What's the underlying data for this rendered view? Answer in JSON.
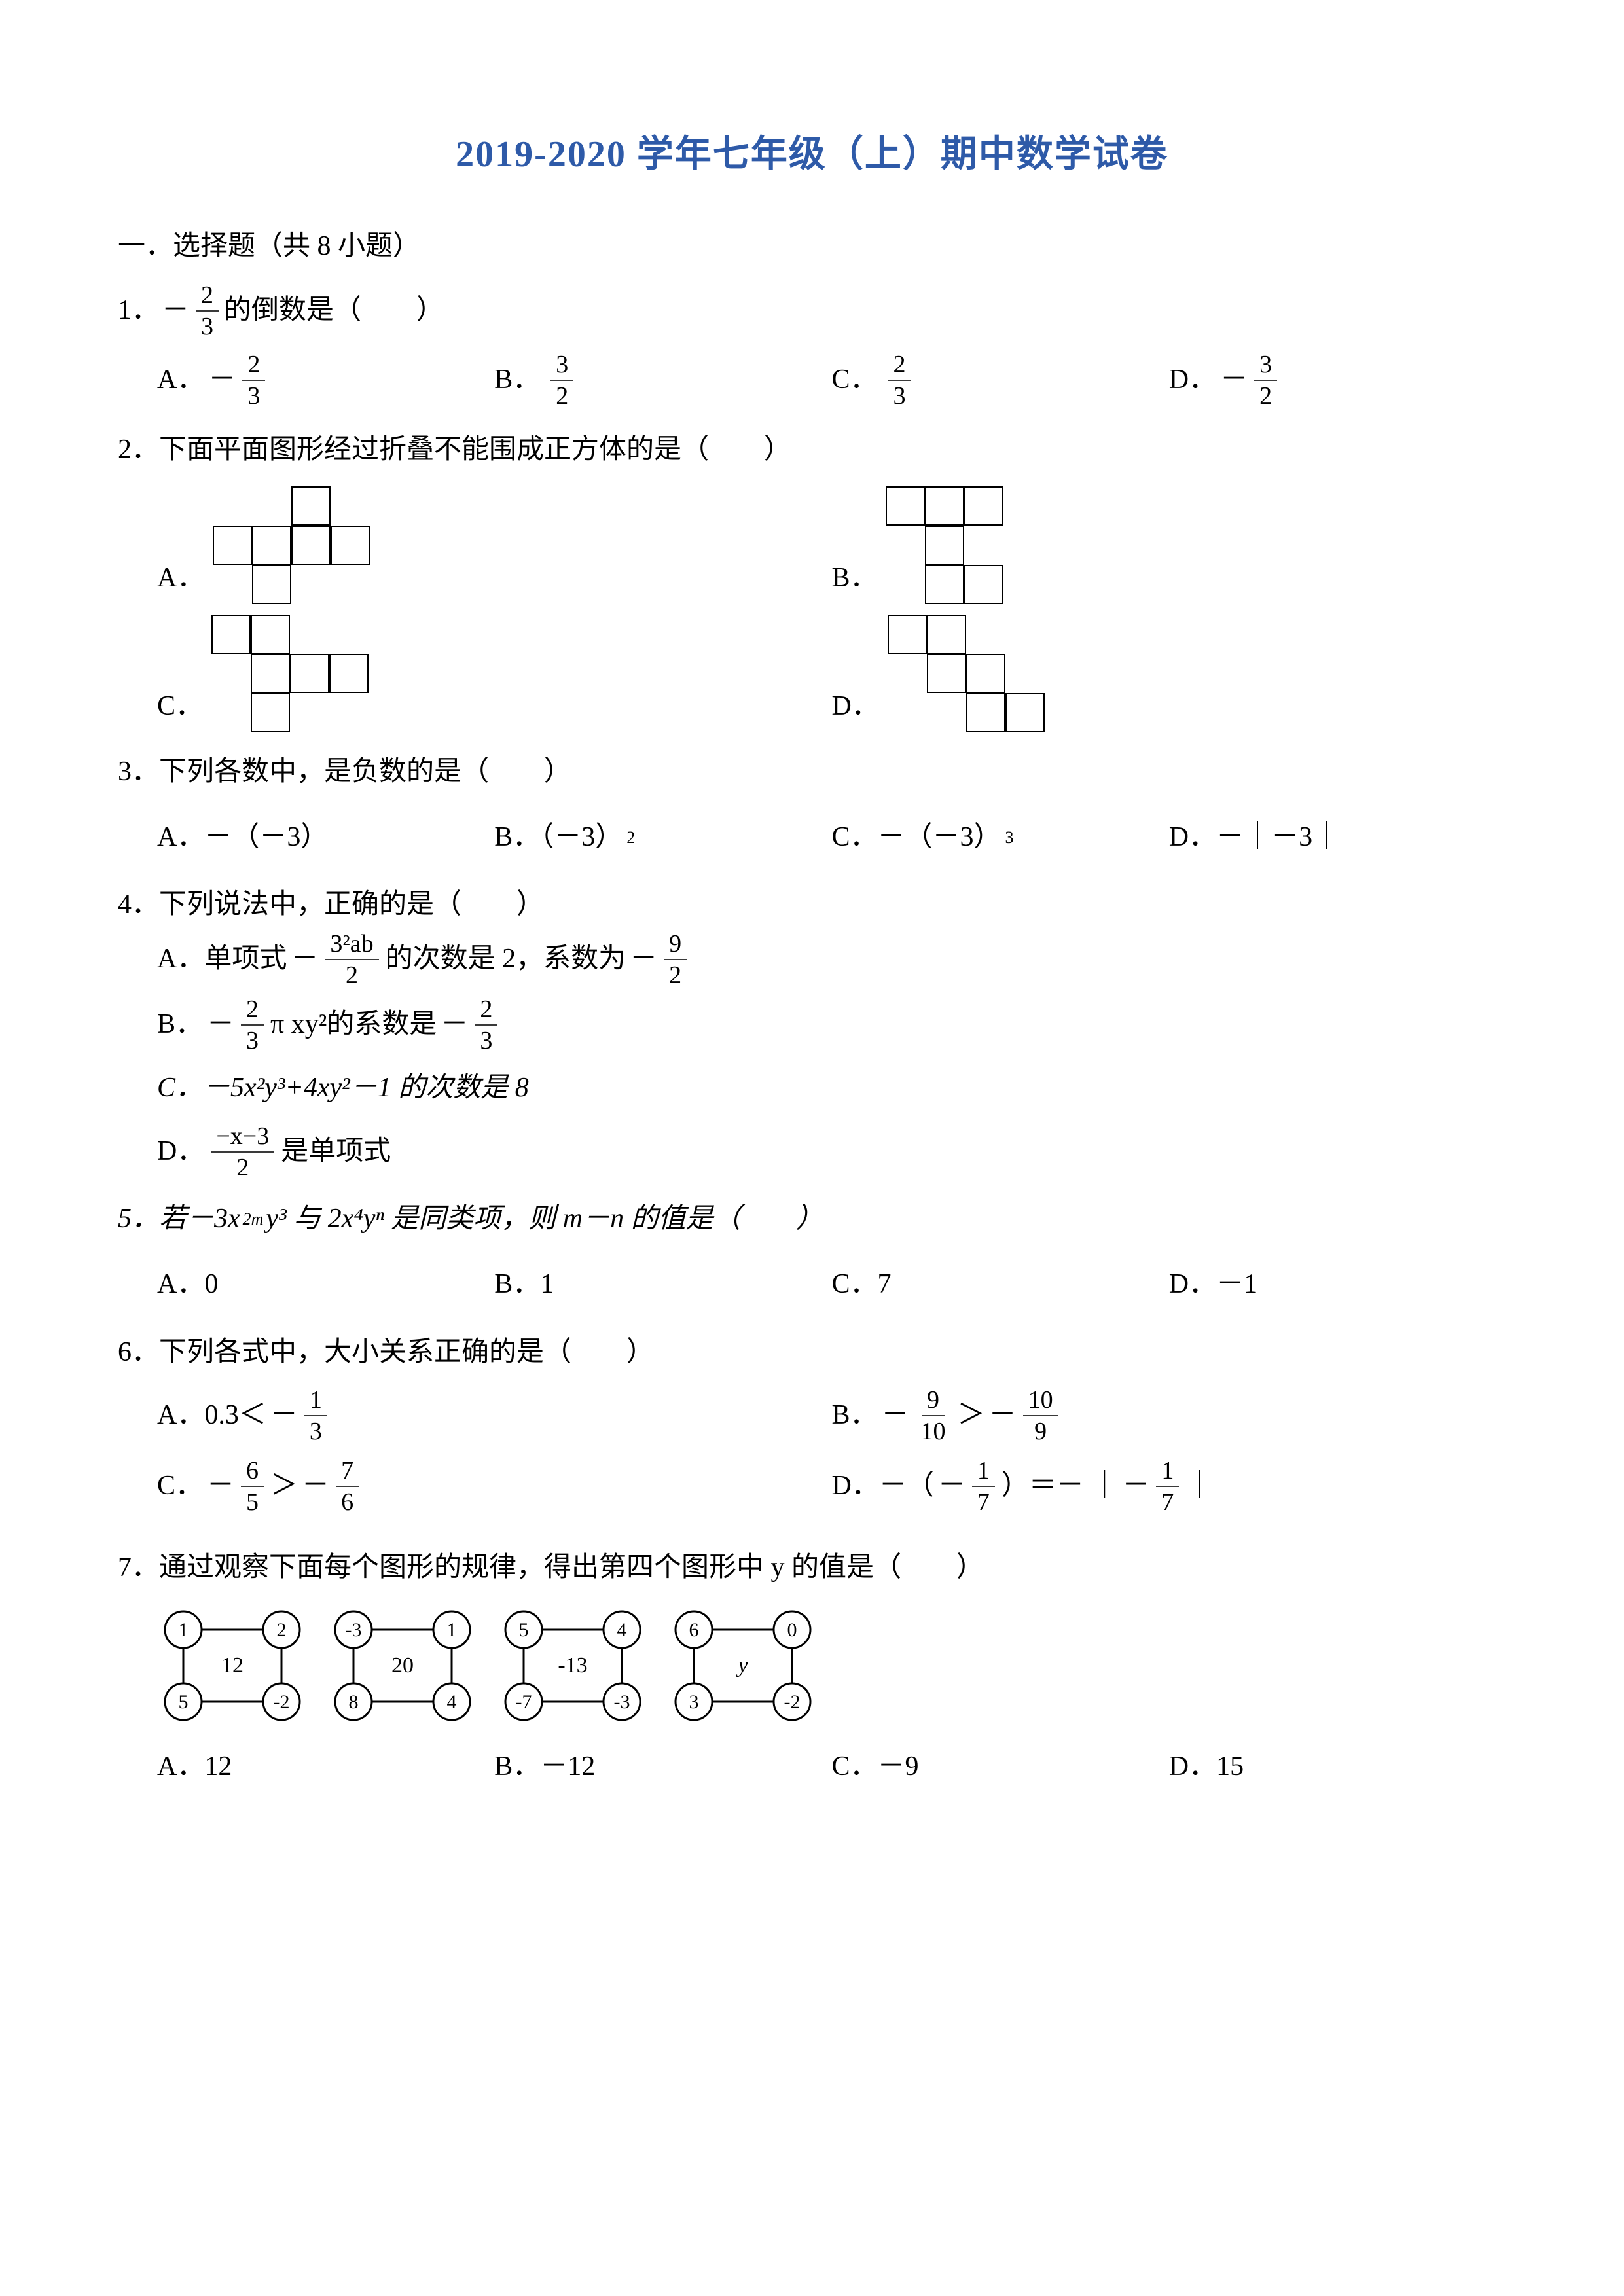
{
  "title": "2019-2020 学年七年级（上）期中数学试卷",
  "section1": "一．选择题（共 8 小题）",
  "q1": {
    "stem_pre": "1．",
    "stem_post": "的倒数是（　　）",
    "minus": "－",
    "frac_n": "2",
    "frac_d": "3",
    "A": "A．",
    "B": "B．",
    "C": "C．",
    "D": "D．",
    "A_n": "2",
    "A_d": "3",
    "A_sign": "－",
    "B_n": "3",
    "B_d": "2",
    "B_sign": "",
    "C_n": "2",
    "C_d": "3",
    "C_sign": "",
    "D_n": "3",
    "D_d": "2",
    "D_sign": "－"
  },
  "q2": {
    "stem": "2．下面平面图形经过折叠不能围成正方体的是（　　）",
    "A": "A．",
    "B": "B．",
    "C": "C．",
    "D": "D．"
  },
  "q3": {
    "stem": "3．下列各数中，是负数的是（　　）",
    "A": "A．－（－3）",
    "B": "B．（－3）",
    "B_sup": "2",
    "C": "C．－（－3）",
    "C_sup": "3",
    "D": "D．－｜－3｜"
  },
  "q4": {
    "stem": "4．下列说法中，正确的是（　　）",
    "A_pre": "A．单项式",
    "A_mid": "的次数是 2，系数为",
    "A_frac1_n": "3²ab",
    "A_frac1_d": "2",
    "A_sign1": "－",
    "A_sign2": "－",
    "A_frac2_n": "9",
    "A_frac2_d": "2",
    "B_pre": "B．",
    "B_sign": "",
    "B_frac_n": "2",
    "B_frac_d": "3",
    "B_mid": "π xy²的系数是",
    "B_sign1": "－",
    "B_sign2": "－",
    "B_frac2_n": "2",
    "B_frac2_d": "3",
    "C": "C．－5x²y³+4xy²－1 的次数是 8",
    "D_pre": "D．",
    "D_frac_n": "−x−3",
    "D_frac_d": "2",
    "D_post": "是单项式"
  },
  "q5": {
    "stem_a": "5．若－3x",
    "stem_b": "y³ 与 2x⁴yⁿ 是同类项，则 m－n 的值是（　　）",
    "sup2m": "2m",
    "A": "A．0",
    "B": "B．1",
    "C": "C．7",
    "D": "D．－1"
  },
  "q6": {
    "stem": "6．下列各式中，大小关系正确的是（　　）",
    "A_pre": "A．0.3＜",
    "A_sign": "－",
    "A_n": "1",
    "A_d": "3",
    "B_pre": "B．",
    "B_s1": "－",
    "B_n1": "9",
    "B_d1": "10",
    "B_cmp": "＞",
    "B_s2": "－",
    "B_n2": "10",
    "B_d2": "9",
    "C_pre": "C．",
    "C_s1": "－",
    "C_n1": "6",
    "C_d1": "5",
    "C_cmp": "＞",
    "C_s2": "－",
    "C_n2": "7",
    "C_d2": "6",
    "D_pre": "D．－（",
    "D_s1": "－",
    "D_n1": "1",
    "D_d1": "7",
    "D_mid": "）＝－ ｜",
    "D_s2": "－",
    "D_n2": "1",
    "D_d2": "7",
    "D_post": "｜"
  },
  "q7": {
    "stem": "7．通过观察下面每个图形的规律，得出第四个图形中 y 的值是（　　）",
    "p": [
      {
        "tl": "1",
        "tr": "2",
        "bl": "5",
        "br": "-2",
        "mid": "12"
      },
      {
        "tl": "-3",
        "tr": "1",
        "bl": "8",
        "br": "4",
        "mid": "20"
      },
      {
        "tl": "5",
        "tr": "4",
        "bl": "-7",
        "br": "-3",
        "mid": "-13"
      },
      {
        "tl": "6",
        "tr": "0",
        "bl": "3",
        "br": "-2",
        "mid": "y"
      }
    ],
    "A": "A．12",
    "B": "B．－12",
    "C": "C．－9",
    "D": "D．15"
  },
  "colors": {
    "title": "#2e5aa8",
    "text": "#000000",
    "stroke": "#000000"
  }
}
